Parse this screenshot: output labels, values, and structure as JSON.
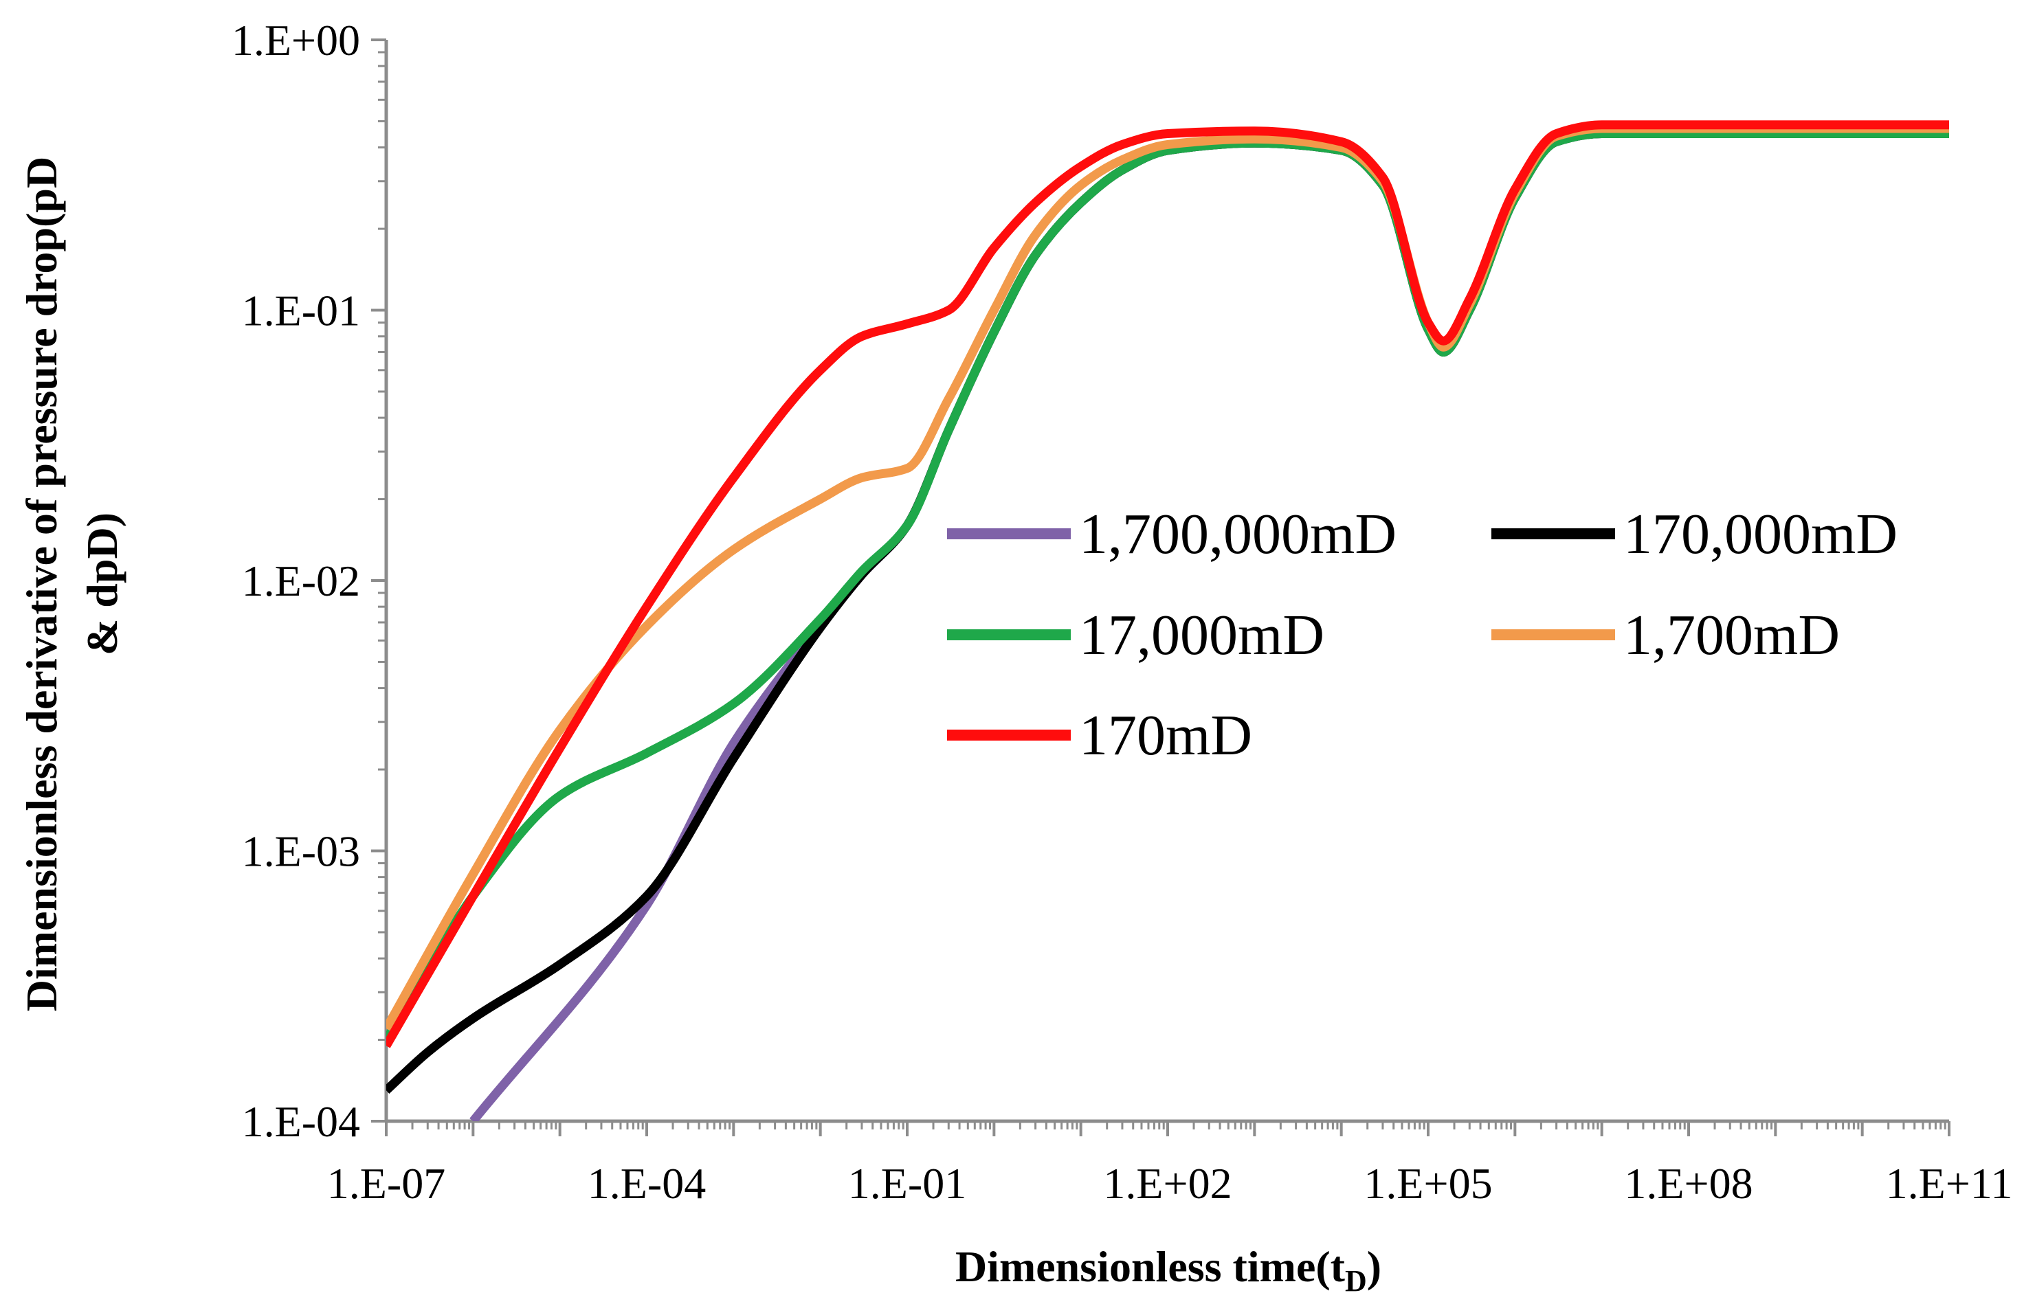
{
  "chart_data": {
    "type": "line",
    "xscale": "log",
    "yscale": "log",
    "xlim": [
      1e-07,
      100000000000.0
    ],
    "ylim": [
      0.0001,
      1
    ],
    "xlabel": "Dimensionless time(t",
    "xlabel_sub": "D",
    "xlabel_end": ")",
    "ylabel_line1": "Dimensionless derivative of pressure drop(pD",
    "ylabel_line2": "& dpD)",
    "x_tick_labels": [
      "1.E-07",
      "1.E-04",
      "1.E-01",
      "1.E+02",
      "1.E+05",
      "1.E+08",
      "1.E+11"
    ],
    "y_tick_labels": [
      "1.E+00",
      "1.E-01",
      "1.E-02",
      "1.E-03",
      "1.E-04"
    ],
    "grid": false,
    "legend_position": "center-right",
    "series": [
      {
        "name": "1,700,000mD",
        "color": "#7f62a8",
        "points": [
          [
            1e-06,
            0.0001
          ],
          [
            0.0001,
            0.00063
          ],
          [
            0.001,
            0.0025
          ],
          [
            0.01,
            0.0068
          ],
          [
            0.03,
            0.0105
          ],
          [
            0.1,
            0.016
          ],
          [
            0.3,
            0.036
          ],
          [
            1,
            0.083
          ],
          [
            3,
            0.16
          ],
          [
            10,
            0.25
          ],
          [
            30,
            0.33
          ],
          [
            100,
            0.39
          ],
          [
            1000,
            0.415
          ],
          [
            10000,
            0.39
          ],
          [
            30000,
            0.29
          ],
          [
            100000.0,
            0.085
          ],
          [
            150000.0,
            0.07
          ],
          [
            300000.0,
            0.1
          ],
          [
            1000000.0,
            0.26
          ],
          [
            3000000.0,
            0.42
          ],
          [
            10000000.0,
            0.45
          ],
          [
            100000000000.0,
            0.45
          ]
        ]
      },
      {
        "name": "170,000mD",
        "color": "#000000",
        "points": [
          [
            1e-07,
            0.00013
          ],
          [
            3e-07,
            0.00018
          ],
          [
            1e-06,
            0.00024
          ],
          [
            1e-05,
            0.00038
          ],
          [
            0.0001,
            0.00068
          ],
          [
            0.001,
            0.0022
          ],
          [
            0.01,
            0.0067
          ],
          [
            0.03,
            0.0105
          ],
          [
            0.1,
            0.016
          ],
          [
            0.3,
            0.036
          ],
          [
            1,
            0.083
          ],
          [
            3,
            0.16
          ],
          [
            10,
            0.25
          ],
          [
            30,
            0.33
          ],
          [
            100,
            0.39
          ],
          [
            1000,
            0.415
          ],
          [
            10000,
            0.39
          ],
          [
            30000,
            0.29
          ],
          [
            100000.0,
            0.085
          ],
          [
            150000.0,
            0.07
          ],
          [
            300000.0,
            0.1
          ],
          [
            1000000.0,
            0.26
          ],
          [
            3000000.0,
            0.42
          ],
          [
            10000000.0,
            0.45
          ],
          [
            100000000000.0,
            0.45
          ]
        ]
      },
      {
        "name": "17,000mD",
        "color": "#1fa84a",
        "points": [
          [
            1e-07,
            0.0002
          ],
          [
            1e-06,
            0.00068
          ],
          [
            1e-05,
            0.0016
          ],
          [
            0.0001,
            0.0023
          ],
          [
            0.001,
            0.0035
          ],
          [
            0.01,
            0.0072
          ],
          [
            0.03,
            0.0108
          ],
          [
            0.1,
            0.016
          ],
          [
            0.3,
            0.036
          ],
          [
            1,
            0.083
          ],
          [
            3,
            0.16
          ],
          [
            10,
            0.25
          ],
          [
            30,
            0.33
          ],
          [
            100,
            0.39
          ],
          [
            1000,
            0.415
          ],
          [
            10000,
            0.39
          ],
          [
            30000,
            0.29
          ],
          [
            100000.0,
            0.085
          ],
          [
            150000.0,
            0.07
          ],
          [
            300000.0,
            0.1
          ],
          [
            1000000.0,
            0.26
          ],
          [
            3000000.0,
            0.42
          ],
          [
            10000000.0,
            0.45
          ],
          [
            100000000000.0,
            0.45
          ]
        ]
      },
      {
        "name": "1,700mD",
        "color": "#f29a4b",
        "points": [
          [
            1e-07,
            0.00022
          ],
          [
            1e-06,
            0.00082
          ],
          [
            1e-05,
            0.0028
          ],
          [
            0.0001,
            0.0068
          ],
          [
            0.001,
            0.013
          ],
          [
            0.01,
            0.02
          ],
          [
            0.03,
            0.024
          ],
          [
            0.1,
            0.026
          ],
          [
            0.3,
            0.047
          ],
          [
            1,
            0.1
          ],
          [
            3,
            0.19
          ],
          [
            10,
            0.29
          ],
          [
            30,
            0.36
          ],
          [
            100,
            0.41
          ],
          [
            1000,
            0.43
          ],
          [
            10000,
            0.4
          ],
          [
            30000,
            0.3
          ],
          [
            100000.0,
            0.09
          ],
          [
            150000.0,
            0.073
          ],
          [
            300000.0,
            0.105
          ],
          [
            1000000.0,
            0.27
          ],
          [
            3000000.0,
            0.44
          ],
          [
            10000000.0,
            0.47
          ],
          [
            100000000000.0,
            0.47
          ]
        ]
      },
      {
        "name": "170mD",
        "color": "#ff0d0d",
        "points": [
          [
            1e-07,
            0.00019
          ],
          [
            1e-06,
            0.00068
          ],
          [
            1e-05,
            0.0024
          ],
          [
            0.0001,
            0.008
          ],
          [
            0.001,
            0.024
          ],
          [
            0.01,
            0.06
          ],
          [
            0.03,
            0.08
          ],
          [
            0.1,
            0.089
          ],
          [
            0.3,
            0.1
          ],
          [
            1,
            0.17
          ],
          [
            3,
            0.25
          ],
          [
            10,
            0.34
          ],
          [
            30,
            0.41
          ],
          [
            100,
            0.45
          ],
          [
            1000,
            0.46
          ],
          [
            10000,
            0.42
          ],
          [
            30000,
            0.31
          ],
          [
            100000.0,
            0.09
          ],
          [
            150000.0,
            0.077
          ],
          [
            300000.0,
            0.11
          ],
          [
            1000000.0,
            0.28
          ],
          [
            3000000.0,
            0.45
          ],
          [
            10000000.0,
            0.485
          ],
          [
            100000000000.0,
            0.485
          ]
        ]
      }
    ]
  }
}
